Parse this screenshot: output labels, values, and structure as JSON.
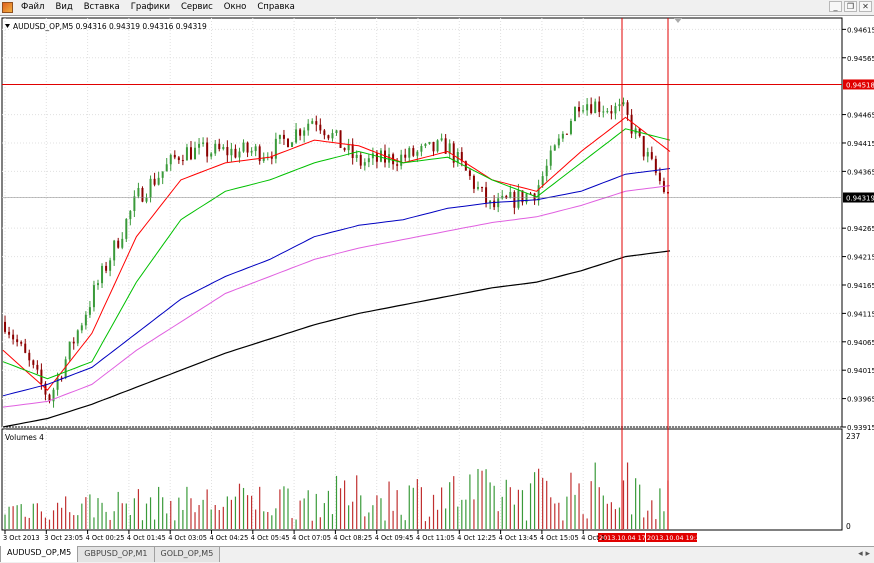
{
  "menu": {
    "items": [
      "Файл",
      "Вид",
      "Вставка",
      "Графики",
      "Сервис",
      "Окно",
      "Справка"
    ],
    "window_controls": [
      "minimize-icon",
      "restore-icon",
      "close-icon"
    ]
  },
  "chart": {
    "title": "AUDUSD_OP,M5  0.94316 0.94319 0.94316 0.94319",
    "volume_label": "Volumes 4",
    "volume_max_label": "237",
    "volume_min_label": "0",
    "price_ticks": [
      "0.94615",
      "0.94565",
      "0.94518",
      "0.94465",
      "0.94415",
      "0.94365",
      "0.94319",
      "0.94265",
      "0.94215",
      "0.94165",
      "0.94115",
      "0.94065",
      "0.94015",
      "0.93965",
      "0.93915"
    ],
    "hline_price": "0.94518",
    "current_price": "0.94319",
    "time_ticks": [
      "3 Oct 2013",
      "3 Oct 23:05",
      "4 Oct 00:25",
      "4 Oct 01:45",
      "4 Oct 03:05",
      "4 Oct 04:25",
      "4 Oct 05:45",
      "4 Oct 07:05",
      "4 Oct 08:25",
      "4 Oct 09:45",
      "4 Oct 11:05",
      "4 Oct 12:25",
      "4 Oct 13:45",
      "4 Oct 15:05",
      "4 Oct 1"
    ],
    "vline_labels": [
      "2013.10.04 17:5",
      "2013.10.04 19:25"
    ],
    "colors": {
      "bull": "#3a9a3a",
      "bear": "#8b0000",
      "ma_red": "#ff0000",
      "ma_green": "#00c000",
      "ma_blue": "#0000c0",
      "ma_violet": "#e060e0",
      "ma_black": "#000000",
      "marker_red": "#e00000"
    }
  },
  "chart_data": {
    "type": "line",
    "symbol": "AUDUSD_OP",
    "timeframe": "M5",
    "ylim": [
      0.93915,
      0.94635
    ],
    "price_path": [
      [
        "3 Oct 2013",
        0.941
      ],
      [
        "3 Oct 23:05",
        0.93965
      ],
      [
        "4 Oct 00:25",
        0.9415
      ],
      [
        "4 Oct 01:45",
        0.9432
      ],
      [
        "4 Oct 03:05",
        0.944
      ],
      [
        "4 Oct 04:25",
        0.944
      ],
      [
        "4 Oct 05:45",
        0.944
      ],
      [
        "4 Oct 07:05",
        0.9446
      ],
      [
        "4 Oct 08:25",
        0.9438
      ],
      [
        "4 Oct 09:45",
        0.9439
      ],
      [
        "4 Oct 11:05",
        0.9441
      ],
      [
        "4 Oct 12:25",
        0.943
      ],
      [
        "4 Oct 13:45",
        0.9433
      ],
      [
        "4 Oct 15:05",
        0.9449
      ],
      [
        "4 Oct 17:55",
        0.9447
      ],
      [
        "4 Oct 19:25",
        0.94319
      ]
    ],
    "series": [
      {
        "values": [
          0.9405,
          0.9398,
          0.9408,
          0.9425,
          0.9435,
          0.9438,
          0.9439,
          0.9442,
          0.9441,
          0.9438,
          0.944,
          0.9435,
          0.9433,
          0.944,
          0.9446,
          0.944
        ]
      },
      {
        "values": [
          0.9403,
          0.94,
          0.9403,
          0.9417,
          0.9428,
          0.9433,
          0.9435,
          0.9438,
          0.944,
          0.9438,
          0.9439,
          0.9435,
          0.9432,
          0.9438,
          0.9444,
          0.9442
        ]
      },
      {
        "values": [
          0.9397,
          0.9399,
          0.9402,
          0.9408,
          0.9414,
          0.9418,
          0.9421,
          0.9425,
          0.9427,
          0.9428,
          0.943,
          0.9431,
          0.94315,
          0.9433,
          0.9436,
          0.9437
        ]
      },
      {
        "values": [
          0.9395,
          0.9396,
          0.9399,
          0.9405,
          0.941,
          0.9415,
          0.9418,
          0.9421,
          0.9423,
          0.94245,
          0.9426,
          0.94275,
          0.94285,
          0.94305,
          0.9433,
          0.9434
        ]
      },
      {
        "values": [
          0.93915,
          0.9393,
          0.93955,
          0.93985,
          0.94015,
          0.94045,
          0.9407,
          0.94095,
          0.94115,
          0.9413,
          0.94145,
          0.9416,
          0.9417,
          0.9419,
          0.94215,
          0.94225
        ]
      }
    ],
    "volume_range": [
      0,
      237
    ]
  }
}
